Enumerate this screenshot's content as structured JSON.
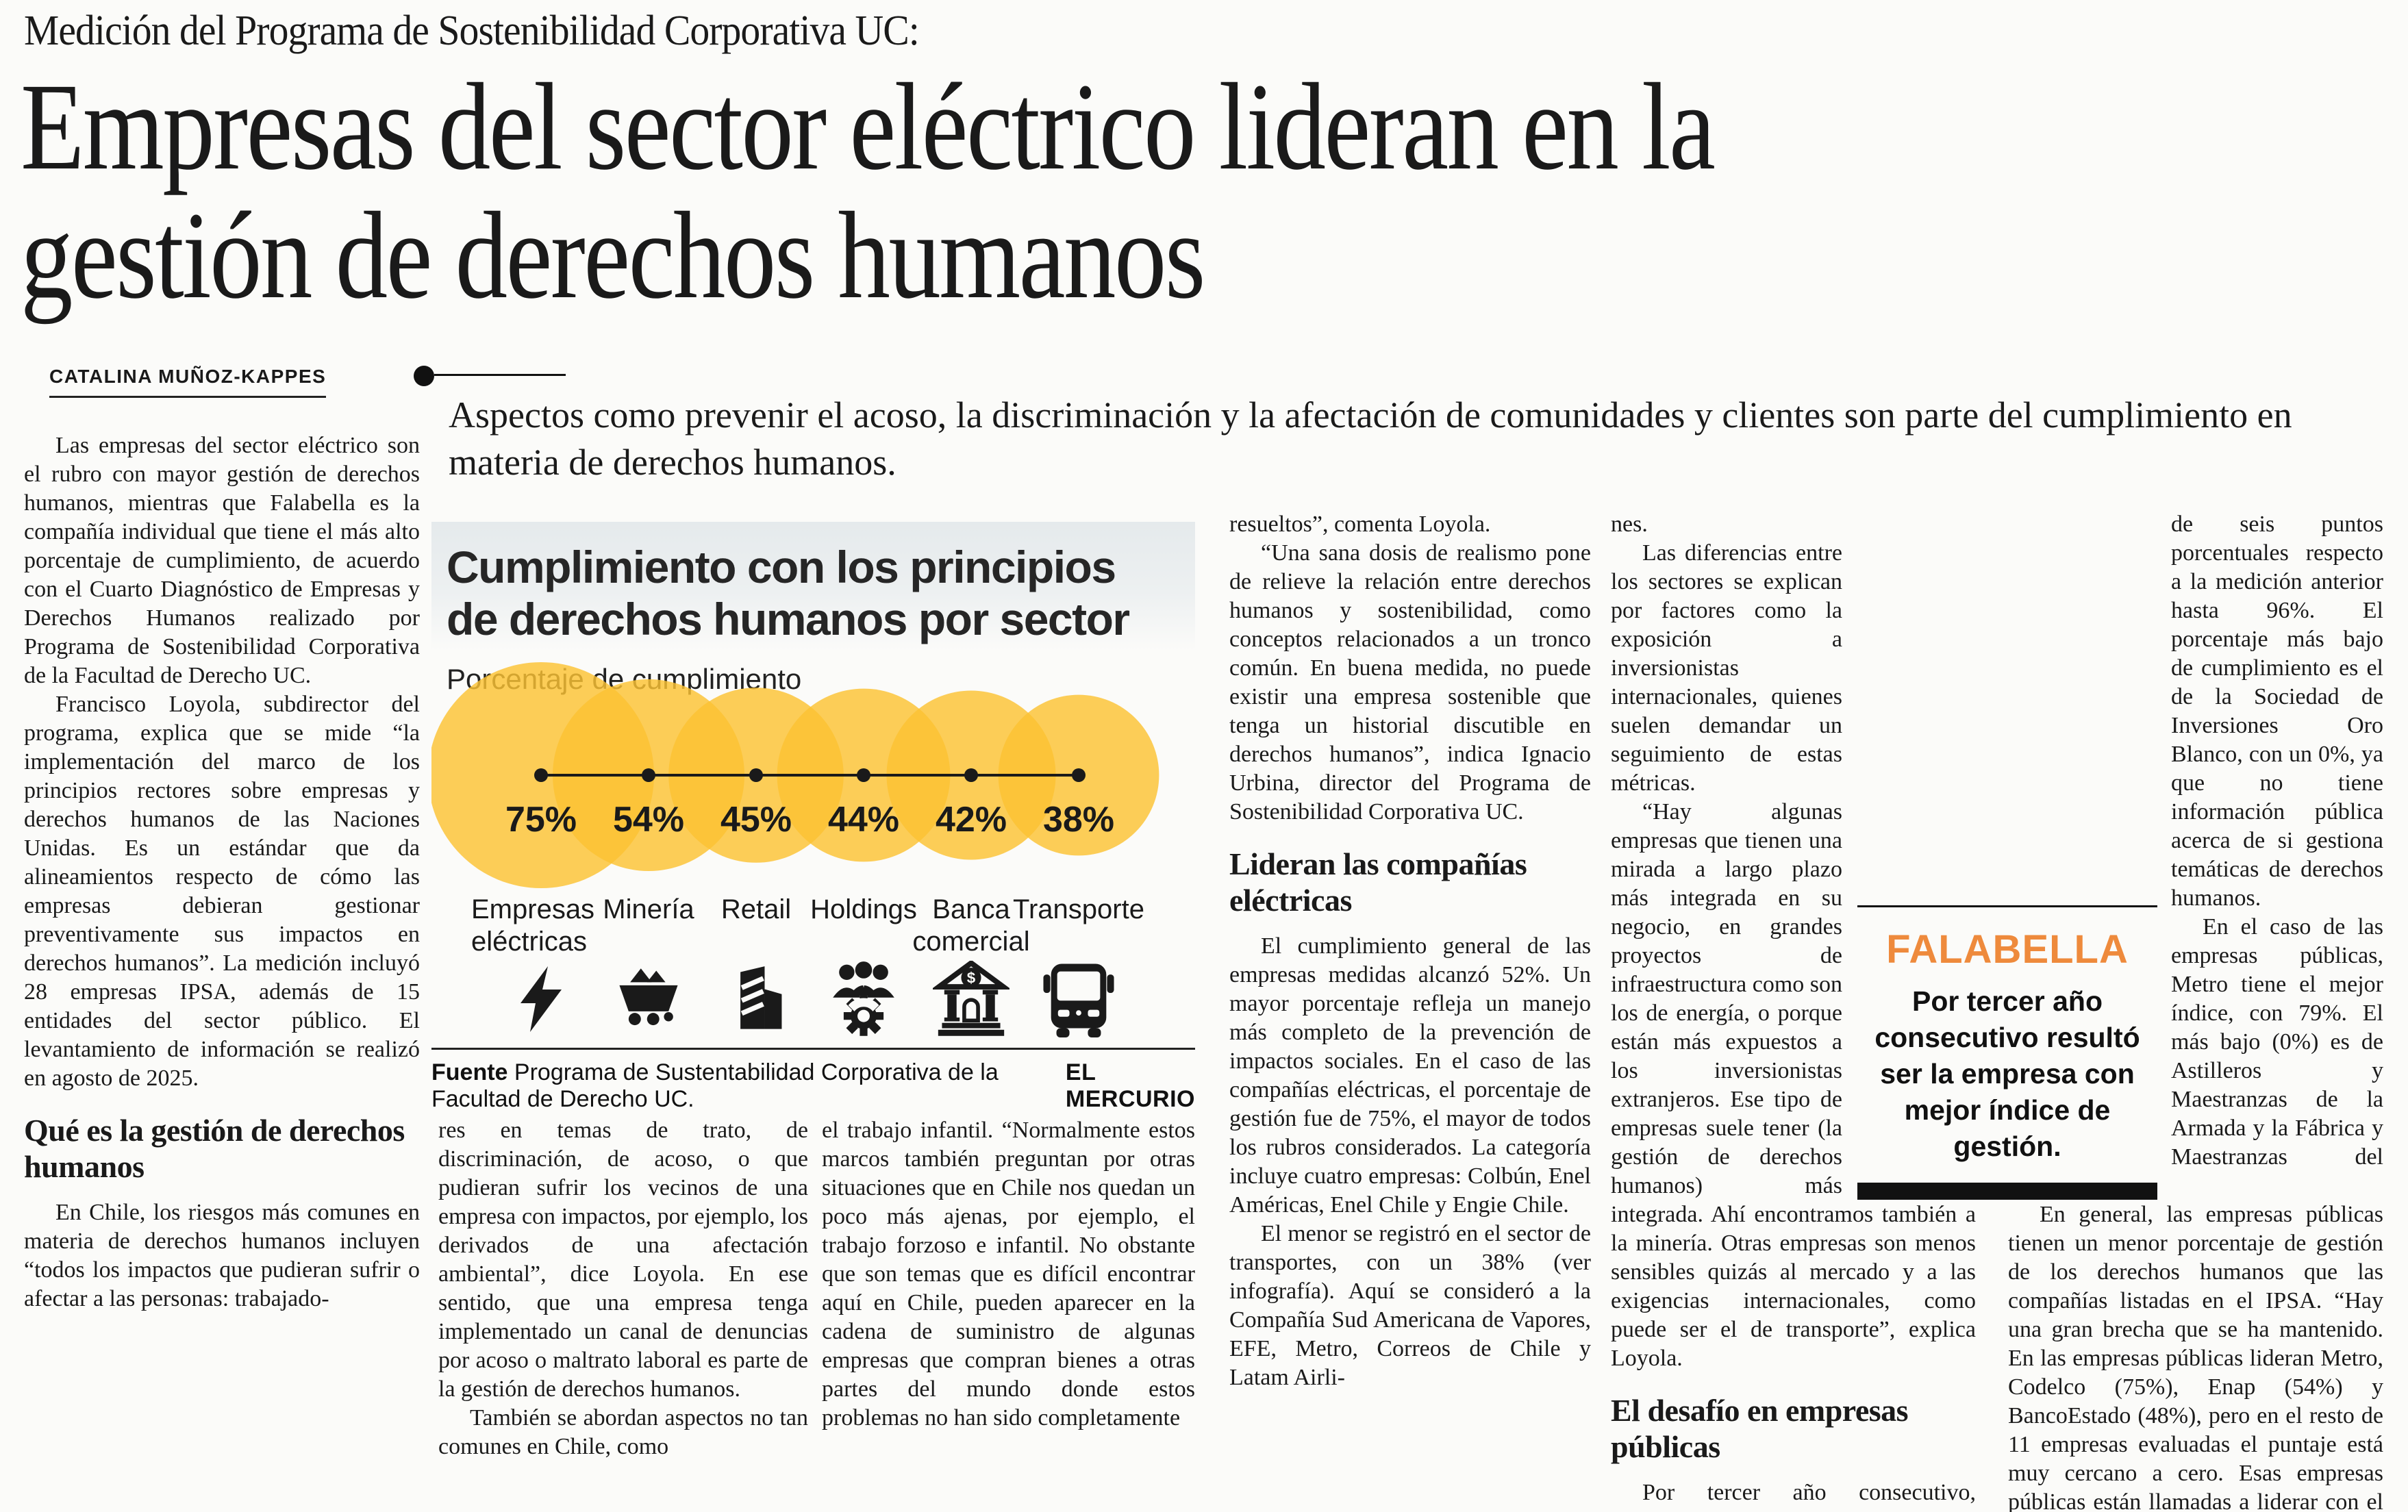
{
  "article": {
    "kicker": "Medición del Programa de Sostenibilidad Corporativa UC:",
    "headline_lines": [
      "Empresas del sector eléctrico lideran en la",
      "gestión de derechos humanos"
    ],
    "byline": "CATALINA MUÑOZ-KAPPES",
    "lede": "Aspectos como prevenir el acoso, la discriminación y la afectación de comunidades y clientes son parte del cumplimiento en materia de derechos humanos.",
    "col1": {
      "p1": "Las empresas del sector eléctrico son el rubro con mayor gestión de derechos humanos, mientras que Falabella es la compañía individual que tiene el más alto porcentaje de cumplimiento, de acuerdo con el Cuarto Diagnóstico de Empresas y Derechos Humanos realizado por Programa de Sostenibilidad Corporativa de la Facultad de Derecho UC.",
      "p2": "Francisco Loyola, subdirector del programa, explica que se mide “la implementación del marco de los principios rectores sobre empresas y derechos humanos de las Naciones Unidas. Es un estándar que da alineamientos respecto de cómo las empresas debieran gestionar preventivamente sus impactos en derechos humanos”. La medición incluyó 28 empresas IPSA, además de 15 entidades del sector público. El levantamiento de información se realizó en agosto de 2025.",
      "subhead": "Qué es la gestión de derechos humanos",
      "p3": "En Chile, los riesgos más comunes en materia de derechos humanos incluyen “todos los impactos que pudieran sufrir o afectar a las personas: trabajado-"
    },
    "col2": {
      "p1": "res en temas de trato, de discriminación, de acoso, o que pudieran sufrir los vecinos de una empresa con impactos, por ejemplo, los derivados de una afectación ambiental”, dice Loyola. En ese sentido, que una empresa tenga implementado un canal de denuncias por acoso o maltrato laboral es parte de la gestión de derechos humanos.",
      "p2": "También se abordan aspectos no tan comunes en Chile, como"
    },
    "col3": {
      "p1": "el trabajo infantil. “Normalmente estos marcos también preguntan por otras situaciones que en Chile nos quedan un poco más ajenas, por ejemplo, el trabajo forzoso e infantil. No obstante que son temas que es difícil encontrar aquí en Chile, pueden aparecer en la cadena de suministro de algunas empresas que compran bienes a otras partes del mundo donde estos problemas no han sido completamente"
    },
    "col4": {
      "p1": "resueltos”, comenta Loyola.",
      "p2": "“Una sana dosis de realismo pone de relieve la relación entre derechos humanos y sostenibilidad, como conceptos relacionados a un tronco común. En buena medida, no puede existir una empresa sostenible que tenga un historial discutible en derechos humanos”, indica Ignacio Urbina, director del Programa de Sostenibilidad Corporativa UC.",
      "subhead": "Lideran las compañías eléctricas",
      "p3": "El cumplimiento general de las empresas medidas alcanzó 52%. Un mayor porcentaje refleja un manejo más completo de la prevención de impactos sociales. En el caso de las compañías eléctricas, el porcentaje de gestión fue de 75%, el mayor de todos los rubros considerados. La categoría incluye cuatro empresas: Colbún, Enel Américas, Enel Chile y Engie Chile.",
      "p4": "El menor se registró en el sector de transportes, con un 38% (ver infografía). Aquí se consideró a la Compañía Sud Americana de Vapores, EFE, Metro, Correos de Chile y Latam Airli-"
    },
    "col5": {
      "p1": "nes.",
      "p2": "Las diferencias entre los sectores se explican por factores como la exposición a inversionistas internacionales, quienes suelen demandar un seguimiento de estas métricas.",
      "p3": "“Hay algunas empresas que tienen una mirada a largo plazo más integrada en su negocio, en grandes proyectos de infraestructura como son los de energía, o porque están más expuestos a los inversionistas extranjeros. Ese tipo de empresas suele tener (la gestión de derechos humanos) más integrada. Ahí encontramos también a la minería. Otras empresas son menos sensibles quizás al mercado y a las exigencias internacionales, como puede ser el de transporte”, explica Loyola.",
      "subhead": "El desafío en empresas públicas",
      "p4": "Por tercer año consecutivo, Falabella registró el mayor índice de cumplimiento, con un alza"
    },
    "col6": {
      "p1": "de seis puntos porcentuales respecto a la medición anterior hasta 96%. El porcentaje más bajo de cumplimiento es el de la Sociedad de Inversiones Oro Blanco, con un 0%, ya que no tiene información pública acerca de si gestiona temáticas de derechos humanos.",
      "p2": "En el caso de las empresas públicas, Metro tiene el mejor índice, con 79%. El más bajo (0%) es de Astilleros y Maestranzas de la Armada y la Fábrica y Maestranzas del Ejército.",
      "p3": "En general, las empresas públicas tienen un menor porcentaje de gestión de los derechos humanos que las compañías listadas en el IPSA. “Hay una gran brecha que se ha mantenido. En las empresas públicas lideran Metro, Codelco (75%), Enap (54%) y BancoEstado (48%), pero en el resto de 11 empresas evaluadas el puntaje está muy cercano a cero. Esas empresas públicas están llamadas a liderar con el ejemplo en materia de empresas y derechos humanos”, comenta Loyola."
    }
  },
  "falabella_box": {
    "title": "FALABELLA",
    "text": "Por tercer año consecutivo resultó ser la empresa con mejor índice de gestión.",
    "accent_color": "#EE8A3C"
  },
  "chart_data": {
    "type": "bubble",
    "title_lines": [
      "Cumplimiento con los principios",
      "de derechos humanos por sector"
    ],
    "subtitle": "Porcentaje de cumplimiento",
    "categories": [
      "Empresas eléctricas",
      "Minería",
      "Retail",
      "Holdings",
      "Banca comercial",
      "Transporte"
    ],
    "values": [
      75,
      54,
      45,
      44,
      42,
      38
    ],
    "unit": "%",
    "icons": [
      "lightning-icon",
      "mine-cart-icon",
      "building-icon",
      "people-gear-icon",
      "bank-icon",
      "bus-icon"
    ],
    "bubble_color": "#FBC233",
    "line_color": "#1a1a1a",
    "legend_position": "none",
    "grid": false,
    "source_label": "Fuente",
    "source": "Programa de Sustentabilidad Corporativa de la Facultad de Derecho UC.",
    "credit": "EL MERCURIO"
  }
}
